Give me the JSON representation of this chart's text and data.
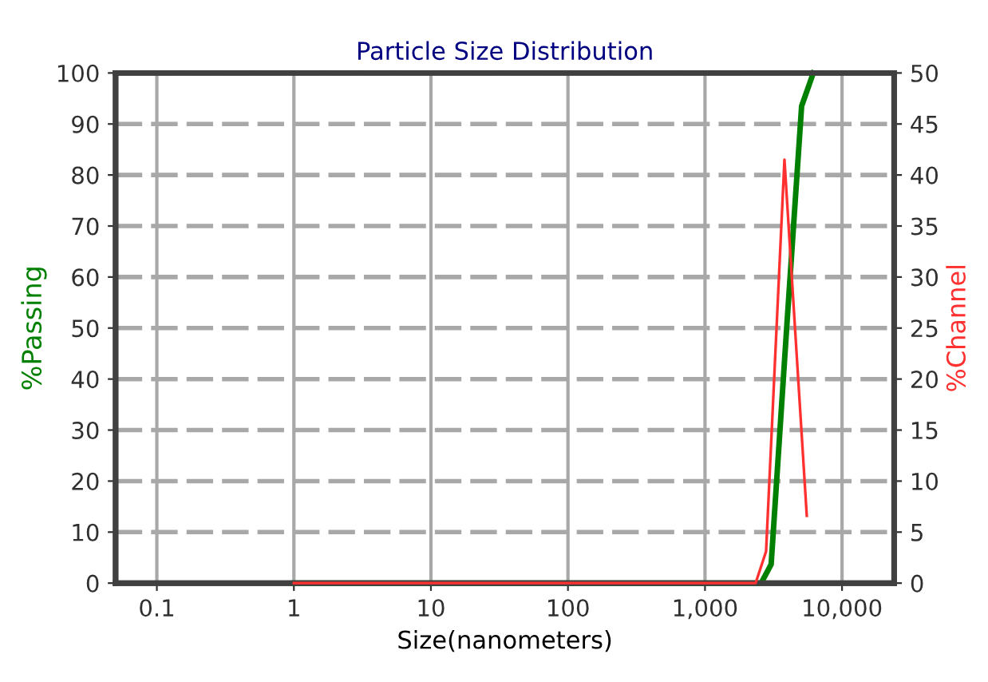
{
  "chart_data": {
    "type": "line",
    "title": "Particle Size Distribution",
    "xlabel": "Size(nanometers)",
    "ylabel": "%Passing",
    "y2label": "%Channel",
    "log": "x",
    "grid": true,
    "marker": "none",
    "line_style": "solid",
    "xlim": [
      0.05,
      24000
    ],
    "xticks": [
      0.1,
      1,
      10,
      100,
      {
        "value": 1000,
        "label": "1,000"
      },
      {
        "value": 10000,
        "label": "10,000"
      }
    ],
    "ylim": [
      0,
      100
    ],
    "yticks": [
      0,
      10,
      20,
      30,
      40,
      50,
      60,
      70,
      80,
      90,
      100
    ],
    "y2lim": [
      0,
      50
    ],
    "y2ticks": [
      0,
      5,
      10,
      15,
      20,
      25,
      30,
      35,
      40,
      45,
      50
    ],
    "series": [
      {
        "color": "#008000",
        "x": [
          1,
          2570,
          3040,
          3960,
          5070,
          6170
        ],
        "values": [
          0,
          0,
          3.7,
          50.7,
          93.5,
          100
        ]
      },
      {
        "color": "#ff3030",
        "axis": "y2",
        "x": [
          1,
          2340,
          2790,
          3800,
          5530
        ],
        "values": [
          0,
          0,
          3.1,
          41.5,
          6.6
        ]
      }
    ]
  }
}
